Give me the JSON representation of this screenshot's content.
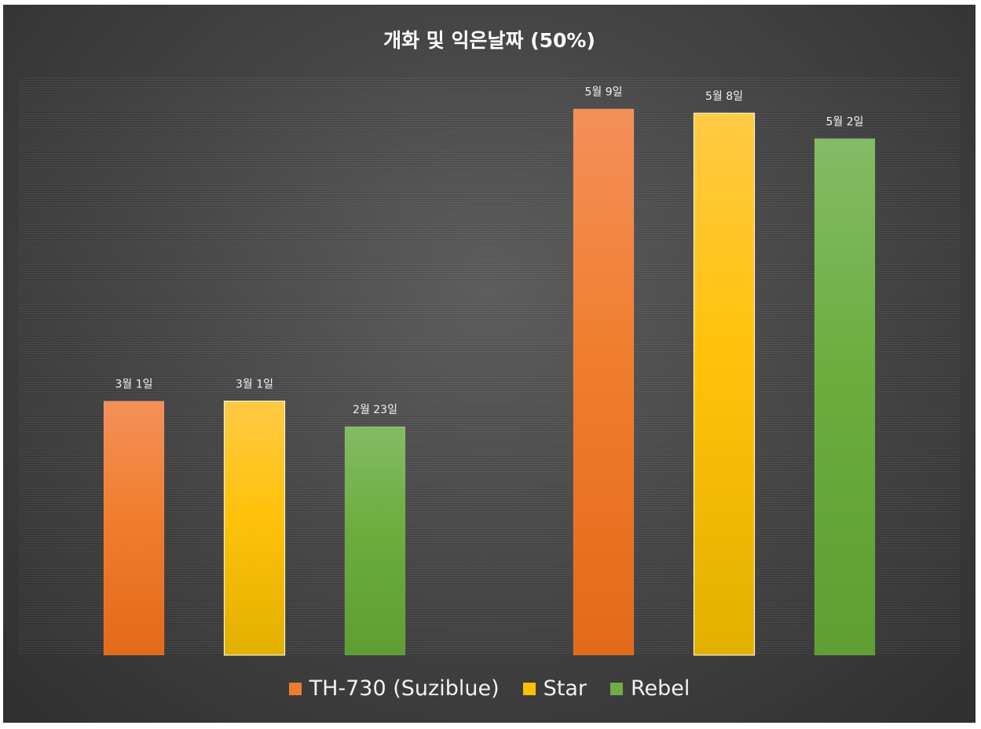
{
  "chart_data": {
    "type": "bar",
    "title": "개화 및 익은날짜 (50%)",
    "categories": [
      "",
      ""
    ],
    "series": [
      {
        "name": "TH-730 (Suziblue)",
        "color": "#ED7D31",
        "labels": [
          "3월 1일",
          "5월 9일"
        ],
        "values": [
          "03-01",
          "05-09"
        ]
      },
      {
        "name": "Star",
        "color": "#FFC000",
        "labels": [
          "3월 1일",
          "5월 8일"
        ],
        "values": [
          "03-01",
          "05-08"
        ]
      },
      {
        "name": "Rebel",
        "color": "#70AD47",
        "labels": [
          "2월 23일",
          "5월 2일"
        ],
        "values": [
          "02-23",
          "05-02"
        ]
      }
    ],
    "xlabel": "",
    "ylabel": "",
    "legend_position": "bottom",
    "grid": true
  }
}
